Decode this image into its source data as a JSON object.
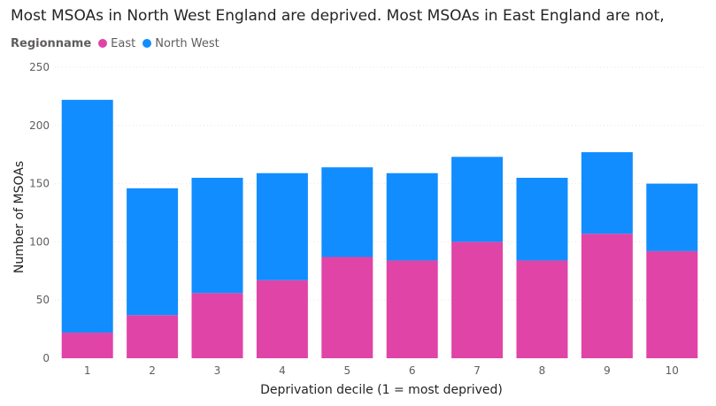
{
  "chart_data": {
    "type": "bar",
    "stacked": true,
    "title": "Most MSOAs in North West England are deprived. Most MSOAs in East England are not,",
    "legend_title": "Regionname",
    "legend_placement": "top-left",
    "xlabel": "Deprivation decile (1 = most deprived)",
    "ylabel": "Number of MSOAs",
    "categories": [
      "1",
      "2",
      "3",
      "4",
      "5",
      "6",
      "7",
      "8",
      "9",
      "10"
    ],
    "ylim": [
      0,
      250
    ],
    "yticks": [
      0,
      50,
      100,
      150,
      200,
      250
    ],
    "grid": true,
    "series": [
      {
        "name": "East",
        "color": "#E044A7",
        "values": [
          22,
          37,
          56,
          67,
          87,
          84,
          100,
          84,
          107,
          92
        ]
      },
      {
        "name": "North West",
        "color": "#118DFF",
        "values": [
          200,
          109,
          99,
          92,
          77,
          75,
          73,
          71,
          70,
          58
        ]
      }
    ]
  }
}
